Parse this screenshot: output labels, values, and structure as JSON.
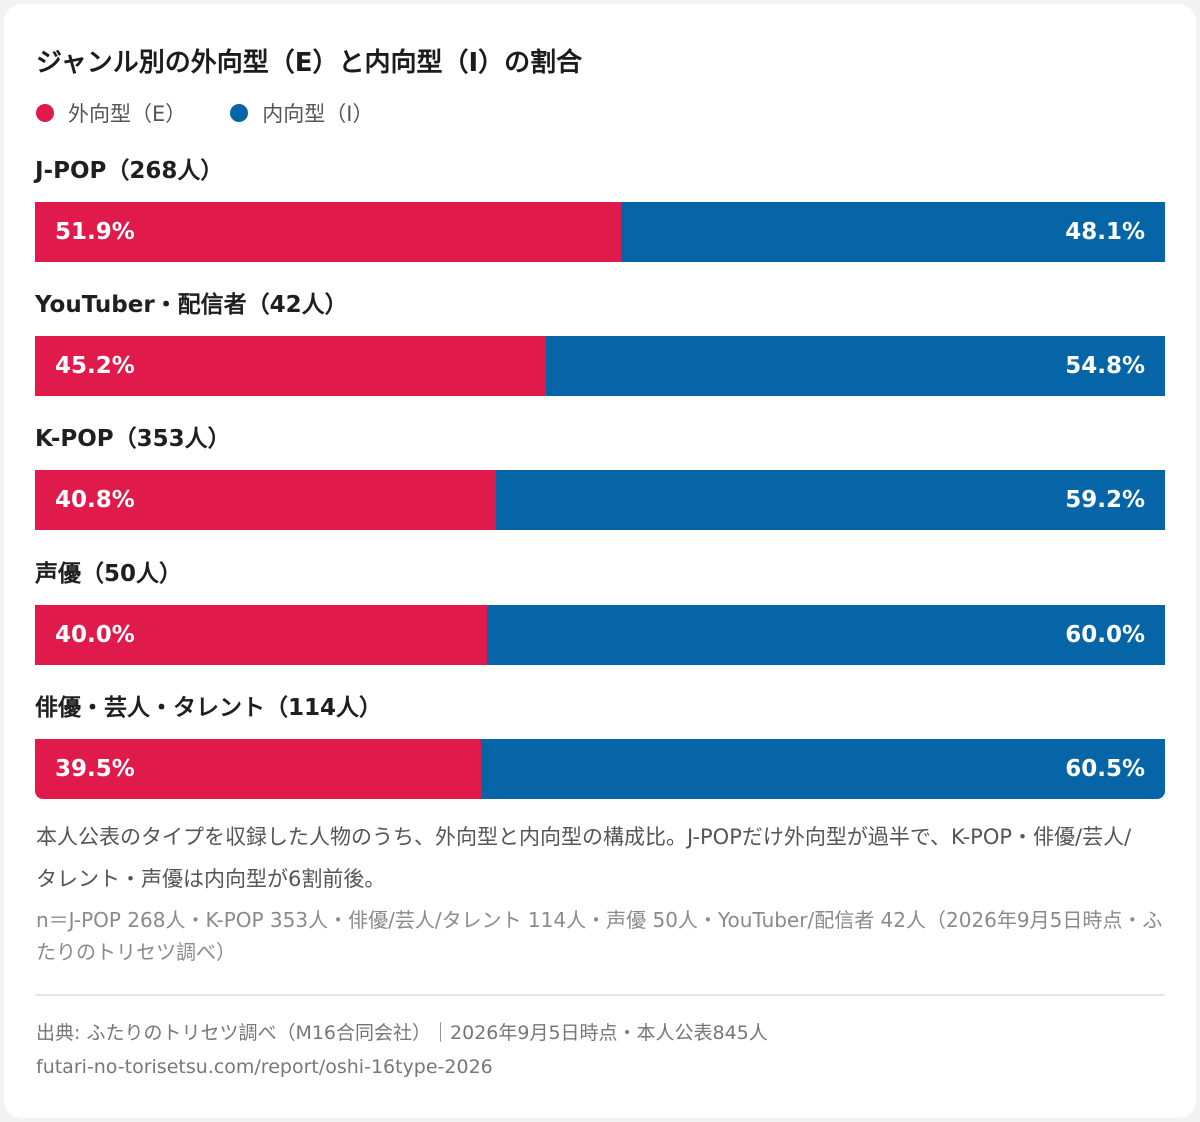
{
  "chart_data": {
    "type": "bar",
    "title": "ジャンル別の外向型（E）と内向型（I）の割合",
    "categories": [
      "J-POP（268人）",
      "YouTuber・配信者（42人）",
      "K-POP（353人）",
      "声優（50人）",
      "俳優・芸人・タレント（114人）"
    ],
    "series": [
      {
        "name": "外向型（E）",
        "color": "#e01b4c",
        "values": [
          51.9,
          45.2,
          40.8,
          40.0,
          39.5
        ],
        "labels": [
          "51.9%",
          "45.2%",
          "40.8%",
          "40.0%",
          "39.5%"
        ]
      },
      {
        "name": "内向型（I）",
        "color": "#0565a6",
        "values": [
          48.1,
          54.8,
          59.2,
          60.0,
          60.5
        ],
        "labels": [
          "48.1%",
          "54.8%",
          "59.2%",
          "60.0%",
          "60.5%"
        ]
      }
    ],
    "stacked": true,
    "orientation": "horizontal",
    "xlim": [
      0,
      100
    ],
    "legend_position": "top-left",
    "grid": false
  },
  "note": "本人公表のタイプを収録した人物のうち、外向型と内向型の構成比。J-POPだけ外向型が過半で、K-POP・俳優/芸人/タレント・声優は内向型が6割前後。",
  "sub_note": "n＝J-POP 268人・K-POP 353人・俳優/芸人/タレント 114人・声優 50人・YouTuber/配信者 42人（2026年9月5日時点・ふたりのトリセツ調べ）",
  "source": "出典: ふたりのトリセツ調べ（M16合同会社）｜2026年9月5日時点・本人公表845人",
  "url": "futari-no-torisetsu.com/report/oshi-16type-2026"
}
